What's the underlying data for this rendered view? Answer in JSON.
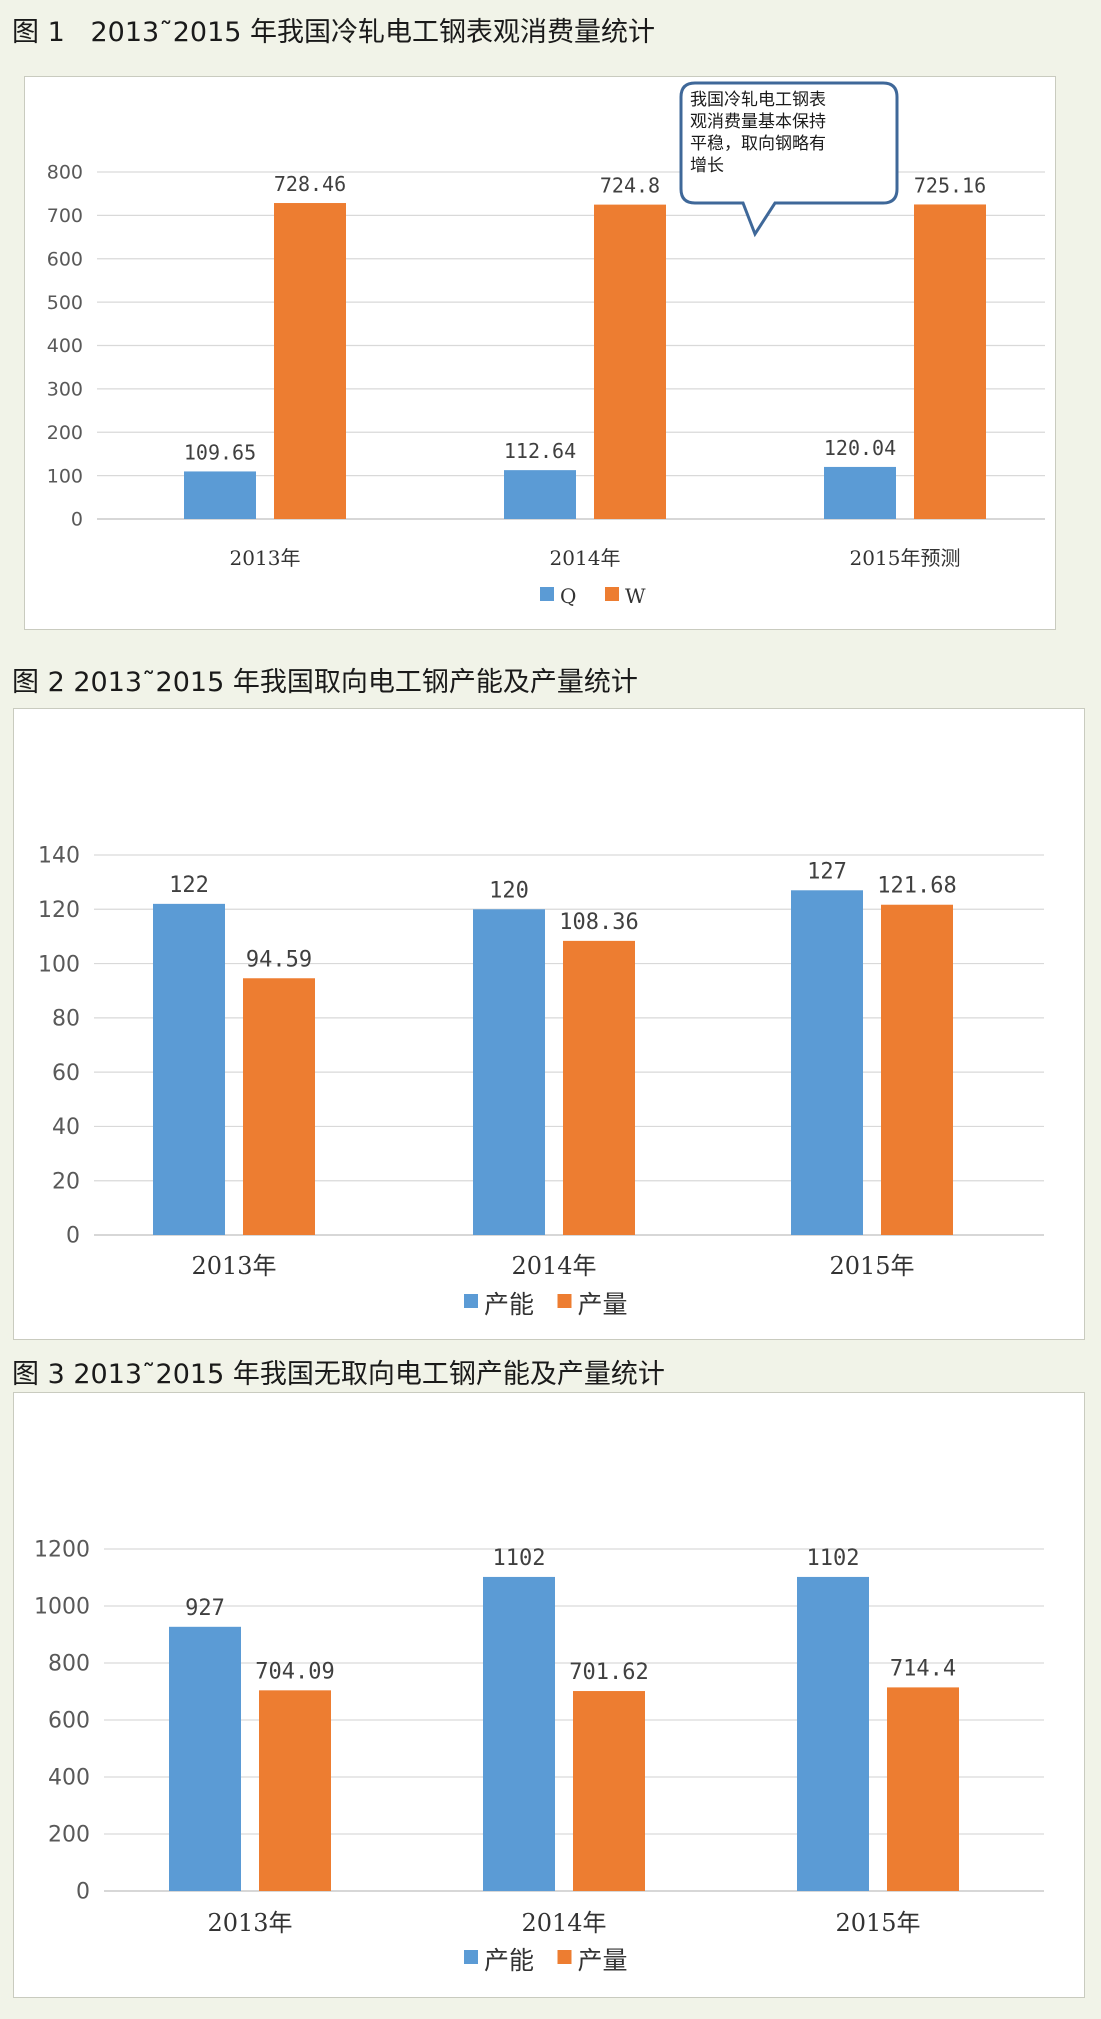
{
  "figures": [
    {
      "title": "图 1   2013˜2015 年我国冷轧电工钢表观消费量统计",
      "callout": [
        "我国冷轧电工钢表",
        "观消费量基本保持",
        "平稳，取向钢略有",
        "增长"
      ],
      "chart_data": {
        "type": "bar",
        "categories": [
          "2013年",
          "2014年",
          "2015年预测"
        ],
        "series": [
          {
            "name": "Q",
            "values": [
              109.65,
              112.64,
              120.04
            ],
            "labels": [
              "109.65",
              "112.64",
              "120.04"
            ],
            "color": "#5b9bd5"
          },
          {
            "name": "W",
            "values": [
              728.46,
              724.8,
              725.16
            ],
            "labels": [
              "728.46",
              "724.8",
              "725.16"
            ],
            "color": "#ed7d31"
          }
        ],
        "ylim": [
          0,
          800
        ],
        "yticks": [
          0,
          100,
          200,
          300,
          400,
          500,
          600,
          700,
          800
        ],
        "grid": true,
        "legend": "bottom"
      }
    },
    {
      "title": "图 2 2013˜2015 年我国取向电工钢产能及产量统计",
      "chart_data": {
        "type": "bar",
        "categories": [
          "2013年",
          "2014年",
          "2015年"
        ],
        "series": [
          {
            "name": "产能",
            "values": [
              122,
              120,
              127
            ],
            "labels": [
              "122",
              "120",
              "127"
            ],
            "color": "#5b9bd5"
          },
          {
            "name": "产量",
            "values": [
              94.59,
              108.36,
              121.68
            ],
            "labels": [
              "94.59",
              "108.36",
              "121.68"
            ],
            "color": "#ed7d31"
          }
        ],
        "ylim": [
          0,
          140
        ],
        "yticks": [
          0,
          20,
          40,
          60,
          80,
          100,
          120,
          140
        ],
        "grid": true,
        "legend": "bottom"
      }
    },
    {
      "title": "图 3 2013˜2015 年我国无取向电工钢产能及产量统计",
      "chart_data": {
        "type": "bar",
        "categories": [
          "2013年",
          "2014年",
          "2015年"
        ],
        "series": [
          {
            "name": "产能",
            "values": [
              927,
              1102,
              1102
            ],
            "labels": [
              "927",
              "1102",
              "1102"
            ],
            "color": "#5b9bd5"
          },
          {
            "name": "产量",
            "values": [
              704.09,
              701.62,
              714.4
            ],
            "labels": [
              "704.09",
              "701.62",
              "714.4"
            ],
            "color": "#ed7d31"
          }
        ],
        "ylim": [
          0,
          1200
        ],
        "yticks": [
          0,
          200,
          400,
          600,
          800,
          1000,
          1200
        ],
        "grid": true,
        "legend": "bottom"
      }
    }
  ]
}
